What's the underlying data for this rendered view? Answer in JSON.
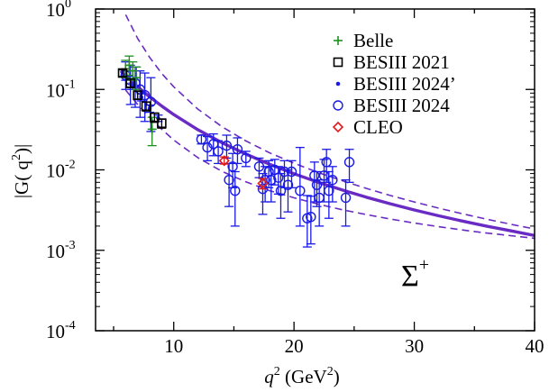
{
  "chart_data": {
    "type": "scatter",
    "title": "",
    "xlabel": {
      "main": "q",
      "sup": "2",
      "unit_open": " (GeV",
      "unit_sup": "2",
      "unit_close": ")"
    },
    "ylabel": {
      "main": "|G( q",
      "sup": "2",
      "close": ")|"
    },
    "xscale": "linear",
    "yscale": "log",
    "xlim": [
      3.5,
      40
    ],
    "ylim": [
      0.0001,
      1
    ],
    "x_ticks": [
      {
        "value": 10,
        "label": "10"
      },
      {
        "value": 20,
        "label": "20"
      },
      {
        "value": 30,
        "label": "30"
      },
      {
        "value": 40,
        "label": "40"
      }
    ],
    "y_ticks": [
      {
        "value": 1,
        "base": "10",
        "exp": "0"
      },
      {
        "value": 0.1,
        "base": "10",
        "exp": "-1"
      },
      {
        "value": 0.01,
        "base": "10",
        "exp": "-2"
      },
      {
        "value": 0.001,
        "base": "10",
        "exp": "-3"
      },
      {
        "value": 0.0001,
        "base": "10",
        "exp": "-4"
      }
    ],
    "annotation": {
      "text": "Σ",
      "sup": "+"
    },
    "legend_position": "top-right",
    "curves": {
      "fit": {
        "x": [
          5.6,
          6,
          7,
          8,
          9,
          10,
          12,
          14,
          16,
          18,
          20,
          22,
          24,
          26,
          28,
          30,
          32,
          34,
          36,
          38,
          40
        ],
        "y": [
          0.17,
          0.148,
          0.108,
          0.081,
          0.0622,
          0.0488,
          0.0316,
          0.0218,
          0.0157,
          0.0117,
          0.00896,
          0.00703,
          0.00563,
          0.00458,
          0.00379,
          0.00317,
          0.00269,
          0.00231,
          0.002,
          0.00175,
          0.00153
        ],
        "color": "#6a2bc4"
      },
      "band_upper": {
        "x": [
          6,
          7,
          8,
          9,
          10,
          12,
          14,
          16,
          18,
          20,
          22,
          24,
          26,
          28,
          30,
          32,
          34,
          36,
          38,
          40
        ],
        "y": [
          0.85,
          0.43,
          0.25,
          0.158,
          0.108,
          0.057,
          0.0345,
          0.0229,
          0.0162,
          0.0121,
          0.00929,
          0.00733,
          0.00589,
          0.00481,
          0.00399,
          0.00335,
          0.00285,
          0.00244,
          0.00211,
          0.00184
        ],
        "color": "#6a2bc4"
      },
      "band_lower": {
        "x": [
          6,
          7,
          8,
          9,
          10,
          12,
          14,
          16,
          18,
          20,
          22,
          24,
          26,
          28,
          30,
          32,
          34,
          36,
          38,
          40
        ],
        "y": [
          0.098,
          0.065,
          0.045,
          0.032,
          0.0235,
          0.0142,
          0.0096,
          0.0071,
          0.0055,
          0.0045,
          0.00375,
          0.0032,
          0.00278,
          0.00245,
          0.00218,
          0.00197,
          0.00179,
          0.00164,
          0.00152,
          0.00141
        ],
        "color": "#6a2bc4"
      }
    },
    "series": [
      {
        "name": "Belle",
        "marker": "plus",
        "color": "#1f8f1f",
        "points": [
          {
            "x": 6.0,
            "y": 0.18,
            "lo": 0.14,
            "hi": 0.23
          },
          {
            "x": 6.3,
            "y": 0.2,
            "lo": 0.15,
            "hi": 0.26
          },
          {
            "x": 6.6,
            "y": 0.17,
            "lo": 0.13,
            "hi": 0.22
          },
          {
            "x": 6.9,
            "y": 0.14,
            "lo": 0.1,
            "hi": 0.19
          },
          {
            "x": 8.2,
            "y": 0.032,
            "lo": 0.02,
            "hi": 0.045
          }
        ]
      },
      {
        "name": "BESIII 2021",
        "marker": "square",
        "color": "#000000",
        "points": [
          {
            "x": 5.75,
            "y": 0.16,
            "lo": 0.145,
            "hi": 0.175
          },
          {
            "x": 6.4,
            "y": 0.12,
            "lo": 0.105,
            "hi": 0.135
          },
          {
            "x": 7.0,
            "y": 0.085,
            "lo": 0.075,
            "hi": 0.095
          },
          {
            "x": 7.7,
            "y": 0.062,
            "lo": 0.054,
            "hi": 0.07
          },
          {
            "x": 8.4,
            "y": 0.045,
            "lo": 0.039,
            "hi": 0.051
          },
          {
            "x": 9.0,
            "y": 0.038,
            "lo": 0.033,
            "hi": 0.043
          }
        ]
      },
      {
        "name": "BESIII 2024’",
        "marker": "dot",
        "color": "#1a1ae6",
        "points": [
          {
            "x": 6.0,
            "y": 0.15,
            "lo": 0.13,
            "hi": 0.17
          },
          {
            "x": 6.6,
            "y": 0.11,
            "lo": 0.1,
            "hi": 0.12
          },
          {
            "x": 7.3,
            "y": 0.08,
            "lo": 0.072,
            "hi": 0.088
          },
          {
            "x": 8.0,
            "y": 0.058,
            "lo": 0.052,
            "hi": 0.064
          },
          {
            "x": 8.7,
            "y": 0.044,
            "lo": 0.04,
            "hi": 0.048
          }
        ]
      },
      {
        "name": "BESIII 2024",
        "marker": "circle",
        "color": "#1a1ae6",
        "points": [
          {
            "x": 6.0,
            "y": 0.15,
            "lo": 0.1,
            "hi": 0.22
          },
          {
            "x": 6.4,
            "y": 0.13,
            "lo": 0.065,
            "hi": 0.2
          },
          {
            "x": 6.8,
            "y": 0.12,
            "lo": 0.06,
            "hi": 0.19
          },
          {
            "x": 7.2,
            "y": 0.1,
            "lo": 0.045,
            "hi": 0.17
          },
          {
            "x": 7.6,
            "y": 0.085,
            "lo": 0.04,
            "hi": 0.16
          },
          {
            "x": 8.1,
            "y": 0.07,
            "lo": 0.03,
            "hi": 0.14
          },
          {
            "x": 12.3,
            "y": 0.024,
            "lo": 0.021,
            "hi": 0.027
          },
          {
            "x": 12.8,
            "y": 0.019,
            "lo": 0.013,
            "hi": 0.026
          },
          {
            "x": 13.3,
            "y": 0.021,
            "lo": 0.015,
            "hi": 0.028
          },
          {
            "x": 13.7,
            "y": 0.017,
            "lo": 0.012,
            "hi": 0.023
          },
          {
            "x": 14.4,
            "y": 0.02,
            "lo": 0.014,
            "hi": 0.027
          },
          {
            "x": 14.6,
            "y": 0.0075,
            "lo": 0.0035,
            "hi": 0.012
          },
          {
            "x": 14.9,
            "y": 0.011,
            "lo": 0.006,
            "hi": 0.016
          },
          {
            "x": 15.1,
            "y": 0.0055,
            "lo": 0.002,
            "hi": 0.0095
          },
          {
            "x": 15.3,
            "y": 0.018,
            "lo": 0.012,
            "hi": 0.025
          },
          {
            "x": 16.0,
            "y": 0.014,
            "lo": 0.011,
            "hi": 0.017
          },
          {
            "x": 17.1,
            "y": 0.011,
            "lo": 0.008,
            "hi": 0.014
          },
          {
            "x": 17.4,
            "y": 0.0058,
            "lo": 0.0028,
            "hi": 0.009
          },
          {
            "x": 17.6,
            "y": 0.0075,
            "lo": 0.004,
            "hi": 0.011
          },
          {
            "x": 17.9,
            "y": 0.0095,
            "lo": 0.006,
            "hi": 0.013
          },
          {
            "x": 18.1,
            "y": 0.0075,
            "lo": 0.004,
            "hi": 0.011
          },
          {
            "x": 18.4,
            "y": 0.01,
            "lo": 0.0065,
            "hi": 0.0135
          },
          {
            "x": 18.7,
            "y": 0.008,
            "lo": 0.005,
            "hi": 0.011
          },
          {
            "x": 18.9,
            "y": 0.0055,
            "lo": 0.0025,
            "hi": 0.009
          },
          {
            "x": 19.2,
            "y": 0.0095,
            "lo": 0.006,
            "hi": 0.013
          },
          {
            "x": 19.5,
            "y": 0.0065,
            "lo": 0.003,
            "hi": 0.01
          },
          {
            "x": 19.8,
            "y": 0.0095,
            "lo": 0.006,
            "hi": 0.013
          },
          {
            "x": 20.5,
            "y": 0.0055,
            "lo": 0.002,
            "hi": 0.019
          },
          {
            "x": 21.1,
            "y": 0.0025,
            "lo": 0.0011,
            "hi": 0.0048
          },
          {
            "x": 21.4,
            "y": 0.0026,
            "lo": 0.0012,
            "hi": 0.0047
          },
          {
            "x": 21.7,
            "y": 0.0085,
            "lo": 0.004,
            "hi": 0.0125
          },
          {
            "x": 21.9,
            "y": 0.0065,
            "lo": 0.0035,
            "hi": 0.0095
          },
          {
            "x": 22.1,
            "y": 0.0045,
            "lo": 0.002,
            "hi": 0.0075
          },
          {
            "x": 22.5,
            "y": 0.0085,
            "lo": 0.004,
            "hi": 0.0135
          },
          {
            "x": 22.7,
            "y": 0.0125,
            "lo": 0.007,
            "hi": 0.018
          },
          {
            "x": 22.9,
            "y": 0.0055,
            "lo": 0.0025,
            "hi": 0.0095
          },
          {
            "x": 23.2,
            "y": 0.0075,
            "lo": 0.004,
            "hi": 0.011
          },
          {
            "x": 24.3,
            "y": 0.0045,
            "lo": 0.002,
            "hi": 0.0075
          },
          {
            "x": 24.6,
            "y": 0.0125,
            "lo": 0.007,
            "hi": 0.018
          }
        ]
      },
      {
        "name": "CLEO",
        "marker": "diamond",
        "color": "#e01a1a",
        "points": [
          {
            "x": 14.2,
            "y": 0.013,
            "lo": 0.0118,
            "hi": 0.0145
          },
          {
            "x": 17.4,
            "y": 0.0068,
            "lo": 0.0058,
            "hi": 0.0078
          }
        ]
      }
    ]
  }
}
